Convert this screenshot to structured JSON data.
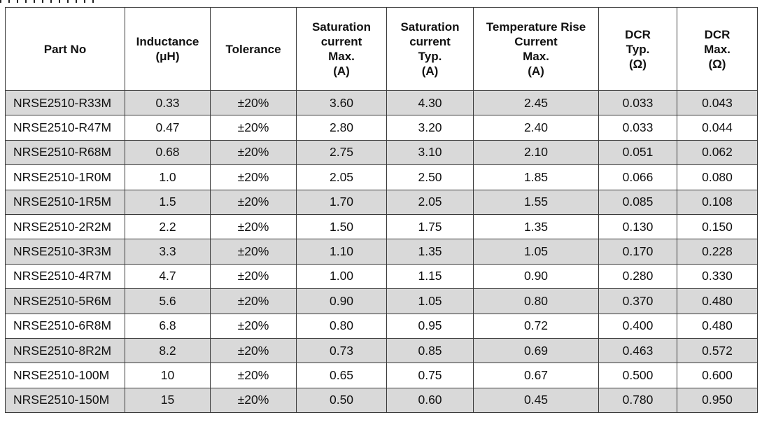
{
  "table": {
    "headers": [
      {
        "key": "part_no",
        "lines": [
          "Part No"
        ]
      },
      {
        "key": "inductance",
        "lines": [
          "Inductance",
          "(μH)"
        ]
      },
      {
        "key": "tolerance",
        "lines": [
          "Tolerance"
        ]
      },
      {
        "key": "sat_max",
        "lines": [
          "Saturation",
          "current",
          "Max.",
          "(A)"
        ]
      },
      {
        "key": "sat_typ",
        "lines": [
          "Saturation",
          "current",
          "Typ.",
          "(A)"
        ]
      },
      {
        "key": "temp_rise",
        "lines": [
          "Temperature Rise",
          "Current",
          "Max.",
          "(A)"
        ]
      },
      {
        "key": "dcr_typ",
        "lines": [
          "DCR",
          "Typ.",
          "(Ω)"
        ]
      },
      {
        "key": "dcr_max",
        "lines": [
          "DCR",
          "Max.",
          "(Ω)"
        ]
      }
    ],
    "rows": [
      [
        "NRSE2510-R33M",
        "0.33",
        "±20%",
        "3.60",
        "4.30",
        "2.45",
        "0.033",
        "0.043"
      ],
      [
        "NRSE2510-R47M",
        "0.47",
        "±20%",
        "2.80",
        "3.20",
        "2.40",
        "0.033",
        "0.044"
      ],
      [
        "NRSE2510-R68M",
        "0.68",
        "±20%",
        "2.75",
        "3.10",
        "2.10",
        "0.051",
        "0.062"
      ],
      [
        "NRSE2510-1R0M",
        "1.0",
        "±20%",
        "2.05",
        "2.50",
        "1.85",
        "0.066",
        "0.080"
      ],
      [
        "NRSE2510-1R5M",
        "1.5",
        "±20%",
        "1.70",
        "2.05",
        "1.55",
        "0.085",
        "0.108"
      ],
      [
        "NRSE2510-2R2M",
        "2.2",
        "±20%",
        "1.50",
        "1.75",
        "1.35",
        "0.130",
        "0.150"
      ],
      [
        "NRSE2510-3R3M",
        "3.3",
        "±20%",
        "1.10",
        "1.35",
        "1.05",
        "0.170",
        "0.228"
      ],
      [
        "NRSE2510-4R7M",
        "4.7",
        "±20%",
        "1.00",
        "1.15",
        "0.90",
        "0.280",
        "0.330"
      ],
      [
        "NRSE2510-5R6M",
        "5.6",
        "±20%",
        "0.90",
        "1.05",
        "0.80",
        "0.370",
        "0.480"
      ],
      [
        "NRSE2510-6R8M",
        "6.8",
        "±20%",
        "0.80",
        "0.95",
        "0.72",
        "0.400",
        "0.480"
      ],
      [
        "NRSE2510-8R2M",
        "8.2",
        "±20%",
        "0.73",
        "0.85",
        "0.69",
        "0.463",
        "0.572"
      ],
      [
        "NRSE2510-100M",
        "10",
        "±20%",
        "0.65",
        "0.75",
        "0.67",
        "0.500",
        "0.600"
      ],
      [
        "NRSE2510-150M",
        "15",
        "±20%",
        "0.50",
        "0.60",
        "0.45",
        "0.780",
        "0.950"
      ]
    ],
    "colors": {
      "shaded_row": "#d9d9d9",
      "plain_row": "#ffffff",
      "border": "#3a3a3a"
    }
  }
}
